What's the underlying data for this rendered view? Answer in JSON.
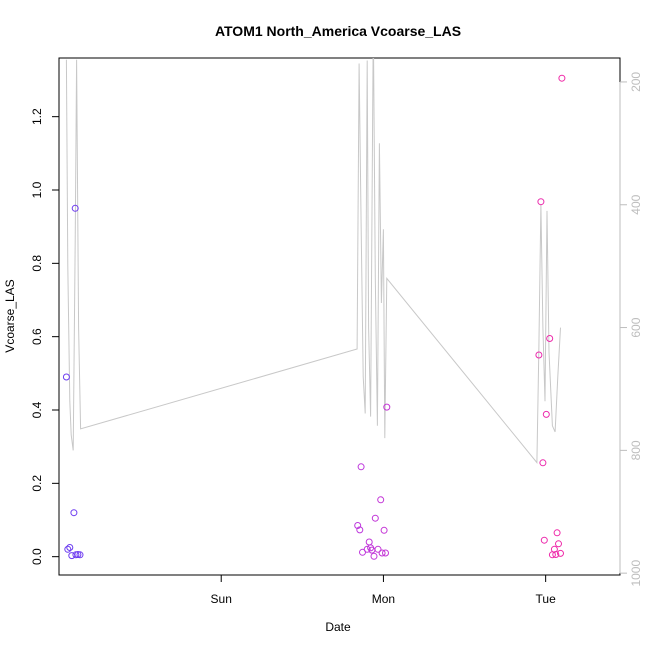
{
  "chart_data": {
    "type": "scatter",
    "title": "ATOM1 North_America Vcoarse_LAS",
    "xlabel": "Date",
    "ylabel": "Vcoarse_LAS",
    "x_ticks": [
      {
        "label": "Sun",
        "value": 24
      },
      {
        "label": "Mon",
        "value": 48
      },
      {
        "label": "Tue",
        "value": 72
      }
    ],
    "xlim": [
      0,
      83
    ],
    "ylim": [
      -0.05,
      1.36
    ],
    "y_ticks": [
      0.0,
      0.2,
      0.4,
      0.6,
      0.8,
      1.0,
      1.2
    ],
    "y2_label": "",
    "y2_ticks": [
      200,
      400,
      600,
      800,
      1000
    ],
    "y2_lim": [
      1003,
      161
    ],
    "colors": {
      "line": "#c8c8c8",
      "right_axis": "#bdbdbd",
      "points_start": "#6b3cf0",
      "points_mid": "#b23ae8",
      "points_end": "#f02aa8"
    },
    "points": [
      {
        "x": 1.1,
        "y": 0.49
      },
      {
        "x": 1.3,
        "y": 0.02
      },
      {
        "x": 1.6,
        "y": 0.025
      },
      {
        "x": 1.9,
        "y": 0.003
      },
      {
        "x": 2.2,
        "y": 0.12
      },
      {
        "x": 2.4,
        "y": 0.95
      },
      {
        "x": 2.5,
        "y": 0.005
      },
      {
        "x": 2.8,
        "y": 0.006
      },
      {
        "x": 3.1,
        "y": 0.005
      },
      {
        "x": 44.2,
        "y": 0.085
      },
      {
        "x": 44.5,
        "y": 0.073
      },
      {
        "x": 44.7,
        "y": 0.245
      },
      {
        "x": 44.9,
        "y": 0.012
      },
      {
        "x": 45.6,
        "y": 0.02
      },
      {
        "x": 45.9,
        "y": 0.04
      },
      {
        "x": 46.1,
        "y": 0.024
      },
      {
        "x": 46.3,
        "y": 0.018
      },
      {
        "x": 46.6,
        "y": 0.001
      },
      {
        "x": 46.8,
        "y": 0.105
      },
      {
        "x": 47.2,
        "y": 0.02
      },
      {
        "x": 47.6,
        "y": 0.155
      },
      {
        "x": 47.8,
        "y": 0.01
      },
      {
        "x": 48.1,
        "y": 0.072
      },
      {
        "x": 48.3,
        "y": 0.01
      },
      {
        "x": 48.5,
        "y": 0.408
      },
      {
        "x": 71.0,
        "y": 0.55
      },
      {
        "x": 71.3,
        "y": 0.968
      },
      {
        "x": 71.6,
        "y": 0.256
      },
      {
        "x": 71.8,
        "y": 0.045
      },
      {
        "x": 72.1,
        "y": 0.388
      },
      {
        "x": 72.6,
        "y": 0.595
      },
      {
        "x": 73.0,
        "y": 0.005
      },
      {
        "x": 73.3,
        "y": 0.02
      },
      {
        "x": 73.5,
        "y": 0.006
      },
      {
        "x": 73.7,
        "y": 0.065
      },
      {
        "x": 73.9,
        "y": 0.035
      },
      {
        "x": 74.2,
        "y": 0.009
      },
      {
        "x": 74.4,
        "y": 1.305
      }
    ],
    "line": [
      {
        "x": 1.1,
        "y2": 164
      },
      {
        "x": 1.3,
        "y2": 500
      },
      {
        "x": 1.6,
        "y2": 720
      },
      {
        "x": 1.8,
        "y2": 775
      },
      {
        "x": 2.1,
        "y2": 800
      },
      {
        "x": 2.4,
        "y2": 460
      },
      {
        "x": 2.6,
        "y2": 164
      },
      {
        "x": 2.9,
        "y2": 600
      },
      {
        "x": 3.2,
        "y2": 765
      },
      {
        "x": 44.1,
        "y2": 635
      },
      {
        "x": 44.4,
        "y2": 170
      },
      {
        "x": 44.7,
        "y2": 430
      },
      {
        "x": 45.0,
        "y2": 680
      },
      {
        "x": 45.3,
        "y2": 740
      },
      {
        "x": 45.6,
        "y2": 165
      },
      {
        "x": 45.8,
        "y2": 600
      },
      {
        "x": 46.1,
        "y2": 745
      },
      {
        "x": 46.5,
        "y2": 100
      },
      {
        "x": 46.8,
        "y2": 520
      },
      {
        "x": 47.1,
        "y2": 760
      },
      {
        "x": 47.4,
        "y2": 300
      },
      {
        "x": 47.7,
        "y2": 560
      },
      {
        "x": 48.0,
        "y2": 440
      },
      {
        "x": 48.2,
        "y2": 780
      },
      {
        "x": 48.5,
        "y2": 520
      },
      {
        "x": 70.7,
        "y2": 820
      },
      {
        "x": 71.0,
        "y2": 630
      },
      {
        "x": 71.3,
        "y2": 400
      },
      {
        "x": 71.6,
        "y2": 600
      },
      {
        "x": 71.9,
        "y2": 720
      },
      {
        "x": 72.2,
        "y2": 410
      },
      {
        "x": 72.5,
        "y2": 640
      },
      {
        "x": 73.0,
        "y2": 760
      },
      {
        "x": 73.4,
        "y2": 770
      },
      {
        "x": 73.8,
        "y2": 680
      },
      {
        "x": 74.2,
        "y2": 600
      }
    ]
  }
}
